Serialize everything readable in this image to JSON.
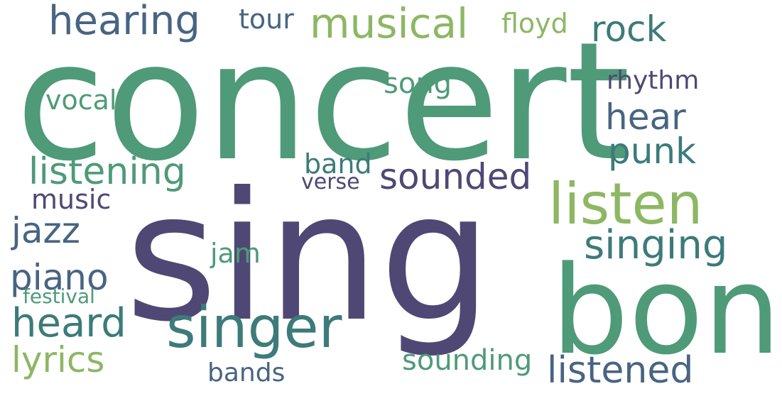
{
  "palette": {
    "teal_green": "#4f9a78",
    "indigo": "#4f4874",
    "slate_blue": "#476582",
    "teal": "#3c7b7a",
    "light_green": "#8db764",
    "blue_grey": "#3f6a82"
  },
  "words": [
    {
      "text": "concert",
      "color": "#4f9a78"
    },
    {
      "text": "sing",
      "color": "#4f4874"
    },
    {
      "text": "bon",
      "color": "#4f9a78"
    },
    {
      "text": "listen",
      "color": "#8db764"
    },
    {
      "text": "singer",
      "color": "#3c7b7a"
    },
    {
      "text": "musical",
      "color": "#8db764"
    },
    {
      "text": "hearing",
      "color": "#476582"
    },
    {
      "text": "rock",
      "color": "#3c7b7a"
    },
    {
      "text": "tour",
      "color": "#476582"
    },
    {
      "text": "floyd",
      "color": "#8db764"
    },
    {
      "text": "song",
      "color": "#4f9a78"
    },
    {
      "text": "rhythm",
      "color": "#4f4874"
    },
    {
      "text": "vocal",
      "color": "#4f9a78"
    },
    {
      "text": "hear",
      "color": "#476582"
    },
    {
      "text": "punk",
      "color": "#3c7b7a"
    },
    {
      "text": "listening",
      "color": "#4f9a78"
    },
    {
      "text": "band",
      "color": "#3c7b7a"
    },
    {
      "text": "sounded",
      "color": "#4f4874"
    },
    {
      "text": "verse",
      "color": "#4f4874"
    },
    {
      "text": "music",
      "color": "#4f4874"
    },
    {
      "text": "jazz",
      "color": "#476582"
    },
    {
      "text": "singing",
      "color": "#3c7b7a"
    },
    {
      "text": "jam",
      "color": "#4f9a78"
    },
    {
      "text": "piano",
      "color": "#476582"
    },
    {
      "text": "festival",
      "color": "#4f9a78"
    },
    {
      "text": "heard",
      "color": "#3c7b7a"
    },
    {
      "text": "lyrics",
      "color": "#8db764"
    },
    {
      "text": "sounding",
      "color": "#4f9a78"
    },
    {
      "text": "bands",
      "color": "#476582"
    },
    {
      "text": "listened",
      "color": "#476582"
    }
  ]
}
